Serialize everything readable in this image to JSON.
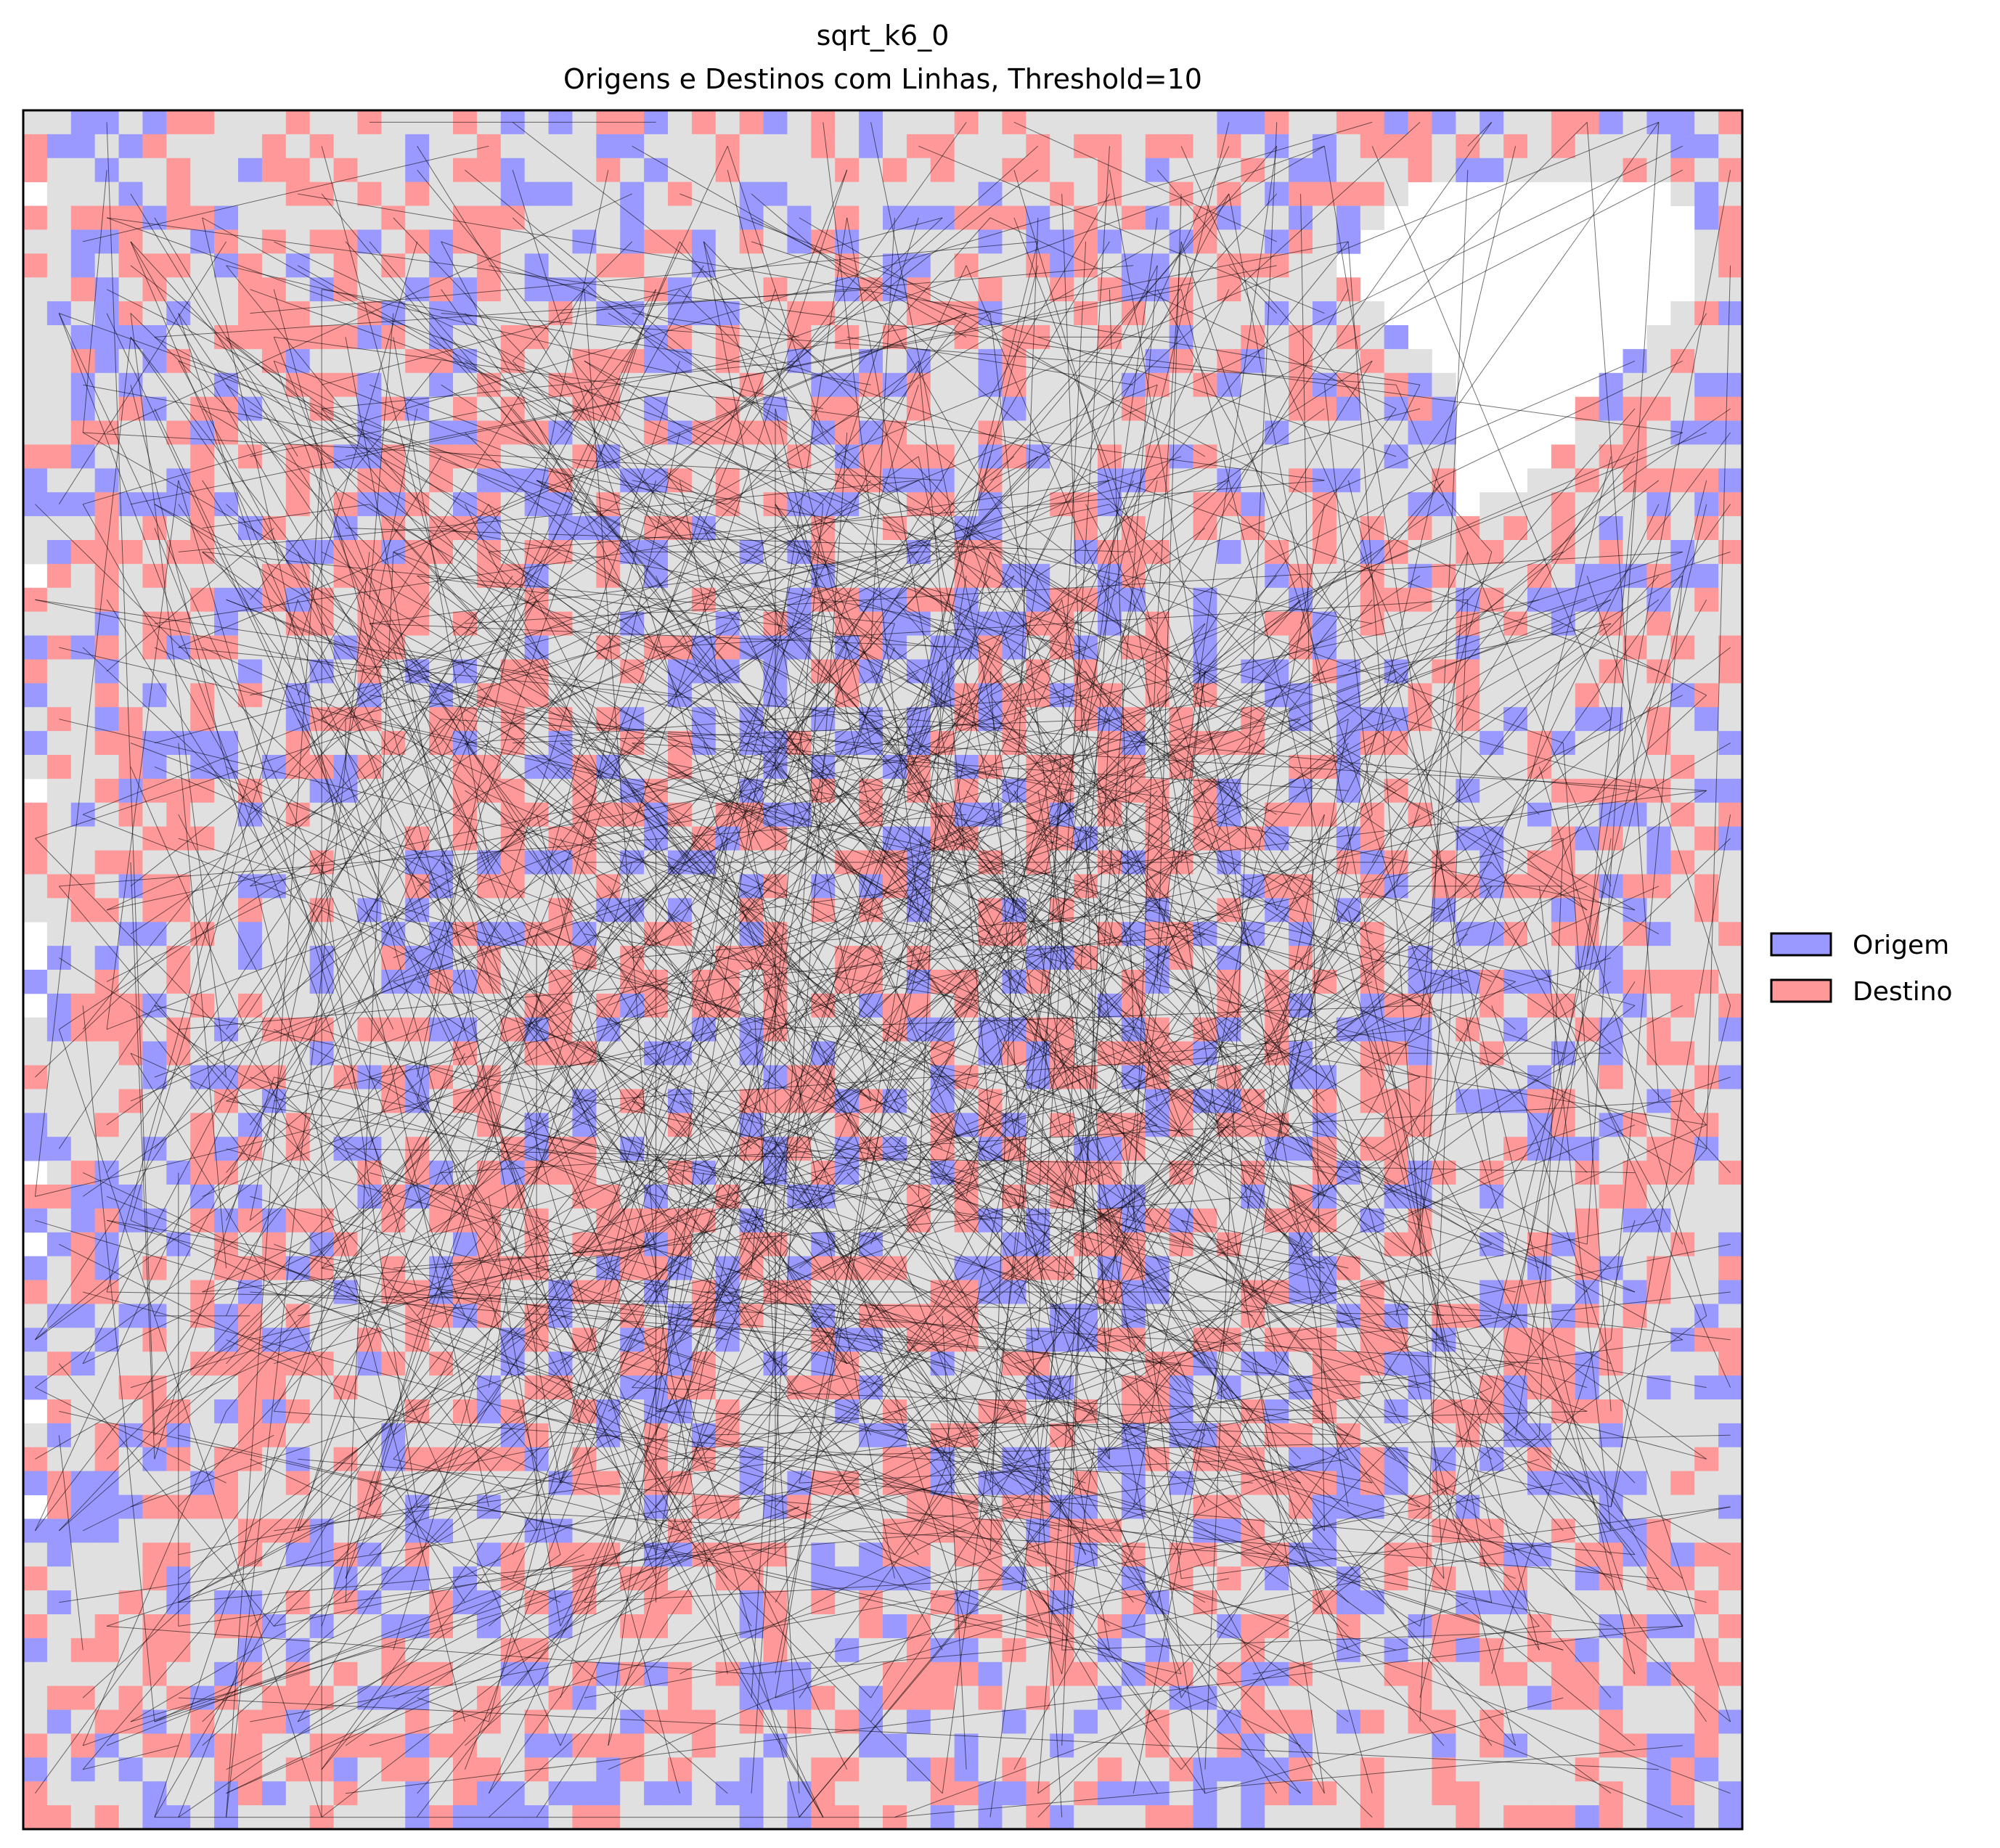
{
  "chart_data": {
    "type": "heatmap",
    "title": "sqrt_k6_0",
    "subtitle": "Origens e Destinos com Linhas, Threshold=10",
    "xlabel": "",
    "ylabel": "",
    "grid_size": [
      72,
      72
    ],
    "axes_ticks": "none",
    "legend": {
      "placement": "center-right",
      "entries": [
        {
          "label": "Origem",
          "color": "#9999ff"
        },
        {
          "label": "Destino",
          "color": "#ff9999"
        }
      ]
    },
    "colors": {
      "background_cell": "#e0e0e0",
      "empty_cell": "#ffffff",
      "origin": "#9999ff",
      "destination": "#ff9999",
      "lines": "#000000"
    },
    "empty_region": {
      "description_polygon": [
        [
          55.5,
          6
        ],
        [
          59,
          3
        ],
        [
          69,
          3
        ],
        [
          70,
          5
        ],
        [
          70,
          8
        ],
        [
          67,
          10
        ],
        [
          66,
          12
        ],
        [
          65,
          13
        ],
        [
          64,
          15
        ],
        [
          62,
          16
        ],
        [
          60,
          17
        ],
        [
          60,
          12
        ],
        [
          58,
          9
        ],
        [
          55.5,
          7
        ]
      ]
    },
    "series": [
      {
        "name": "Origem",
        "fraction": 0.2,
        "color": "#9999ff"
      },
      {
        "name": "Destino",
        "fraction": 0.3,
        "color": "#ff9999"
      }
    ],
    "connection_lines": {
      "count": 800,
      "seed": 6
    }
  }
}
